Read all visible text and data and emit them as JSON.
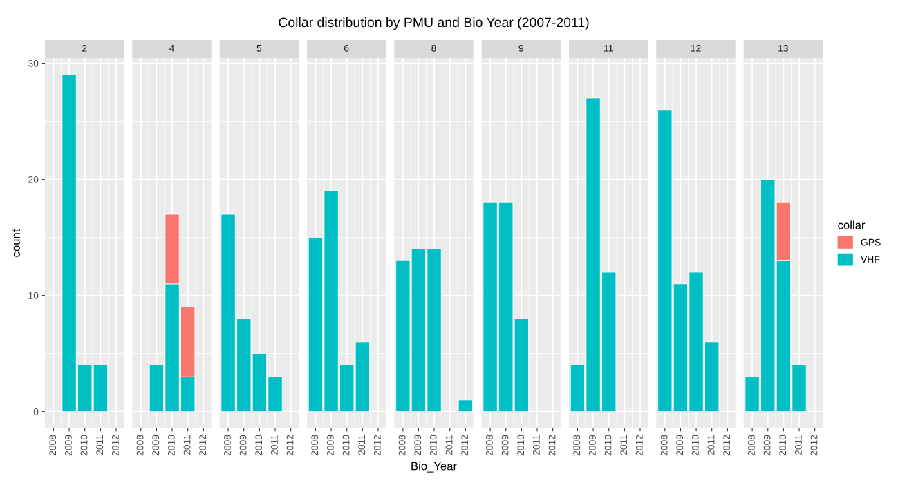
{
  "chart_data": [
    {
      "type": "bar",
      "subtitle": "2",
      "ylabel": "count",
      "stacked": true,
      "xlim": [
        2007.45,
        2012.5
      ],
      "xticks": [
        2008,
        2009,
        2010,
        2011,
        2012
      ],
      "ylim": [
        -1.45,
        30.45
      ],
      "yticks": [
        0,
        10,
        20,
        30
      ],
      "grid": true,
      "series": [
        {
          "color": "#00bfc4",
          "x": [
            2009,
            2010,
            2011
          ],
          "values": [
            29,
            4,
            4
          ]
        }
      ]
    },
    {
      "type": "bar",
      "subtitle": "4",
      "stacked": true,
      "tick_labels": "x",
      "xlim": [
        2007.45,
        2012.5
      ],
      "xticks": [
        2008,
        2009,
        2010,
        2011,
        2012
      ],
      "ylim": [
        -1.45,
        30.45
      ],
      "yticks": [
        0,
        10,
        20,
        30
      ],
      "grid": true,
      "series": [
        {
          "color": "#00bfc4",
          "values": [
            4,
            11,
            3
          ]
        },
        {
          "color": "#f8766d",
          "values": [
            null,
            6,
            6
          ]
        }
      ],
      "x": [
        2009,
        2010,
        2011
      ]
    },
    {
      "type": "bar",
      "subtitle": "5",
      "stacked": true,
      "tick_labels": "x",
      "xlim": [
        2007.45,
        2012.5
      ],
      "xticks": [
        2008,
        2009,
        2010,
        2011,
        2012
      ],
      "ylim": [
        -1.45,
        30.45
      ],
      "yticks": [
        0,
        10,
        20,
        30
      ],
      "grid": true,
      "series": [
        {
          "color": "#00bfc4",
          "x": [
            2008,
            2009,
            2010,
            2011
          ],
          "values": [
            17,
            8,
            5,
            3
          ]
        }
      ]
    },
    {
      "type": "bar",
      "subtitle": "6",
      "stacked": true,
      "tick_labels": "x",
      "xlim": [
        2007.45,
        2012.5
      ],
      "xticks": [
        2008,
        2009,
        2010,
        2011,
        2012
      ],
      "ylim": [
        -1.45,
        30.45
      ],
      "yticks": [
        0,
        10,
        20,
        30
      ],
      "grid": true,
      "series": [
        {
          "color": "#00bfc4",
          "x": [
            2008,
            2009,
            2010,
            2011
          ],
          "values": [
            15,
            19,
            4,
            6
          ]
        }
      ]
    },
    {
      "type": "bar",
      "title": "Collar distribution by PMU and Bio Year (2007-2011)",
      "subtitle": "8",
      "xlabel": "Bio_Year",
      "stacked": true,
      "tick_labels": "x",
      "xlim": [
        2007.45,
        2012.5
      ],
      "xticks": [
        2008,
        2009,
        2010,
        2011,
        2012
      ],
      "ylim": [
        -1.45,
        30.45
      ],
      "yticks": [
        0,
        10,
        20,
        30
      ],
      "grid": true,
      "series": [
        {
          "color": "#00bfc4",
          "x": [
            2008,
            2009,
            2010,
            2012
          ],
          "values": [
            13,
            14,
            14,
            1
          ]
        }
      ]
    },
    {
      "type": "bar",
      "subtitle": "9",
      "stacked": true,
      "tick_labels": "x",
      "xlim": [
        2007.45,
        2012.5
      ],
      "xticks": [
        2008,
        2009,
        2010,
        2011,
        2012
      ],
      "ylim": [
        -1.45,
        30.45
      ],
      "yticks": [
        0,
        10,
        20,
        30
      ],
      "grid": true,
      "series": [
        {
          "color": "#00bfc4",
          "x": [
            2008,
            2009,
            2010
          ],
          "values": [
            18,
            18,
            8
          ]
        }
      ]
    },
    {
      "type": "bar",
      "subtitle": "11",
      "stacked": true,
      "tick_labels": "x",
      "xlim": [
        2007.45,
        2012.5
      ],
      "xticks": [
        2008,
        2009,
        2010,
        2011,
        2012
      ],
      "ylim": [
        -1.45,
        30.45
      ],
      "yticks": [
        0,
        10,
        20,
        30
      ],
      "grid": true,
      "series": [
        {
          "color": "#00bfc4",
          "x": [
            2008,
            2009,
            2010
          ],
          "values": [
            4,
            27,
            12
          ]
        }
      ]
    },
    {
      "type": "bar",
      "subtitle": "12",
      "stacked": true,
      "tick_labels": "x",
      "xlim": [
        2007.45,
        2012.5
      ],
      "xticks": [
        2008,
        2009,
        2010,
        2011,
        2012
      ],
      "ylim": [
        -1.45,
        30.45
      ],
      "yticks": [
        0,
        10,
        20,
        30
      ],
      "grid": true,
      "series": [
        {
          "color": "#00bfc4",
          "x": [
            2008,
            2009,
            2010,
            2011
          ],
          "values": [
            26,
            11,
            12,
            6
          ]
        }
      ]
    },
    {
      "type": "bar",
      "subtitle": "13",
      "stacked": true,
      "tick_labels": "x",
      "legend": "right",
      "legend_title": "collar",
      "xlim": [
        2007.45,
        2012.5
      ],
      "xticks": [
        2008,
        2009,
        2010,
        2011,
        2012
      ],
      "ylim": [
        -1.45,
        30.45
      ],
      "yticks": [
        0,
        10,
        20,
        30
      ],
      "grid": true,
      "series": [
        {
          "name": "VHF",
          "color": "#00bfc4",
          "values": [
            3,
            20,
            13,
            4
          ]
        },
        {
          "name": "GPS",
          "color": "#f8766d",
          "values": [
            null,
            null,
            5,
            null
          ]
        }
      ],
      "x": [
        2008,
        2009,
        2010,
        2011
      ]
    }
  ]
}
